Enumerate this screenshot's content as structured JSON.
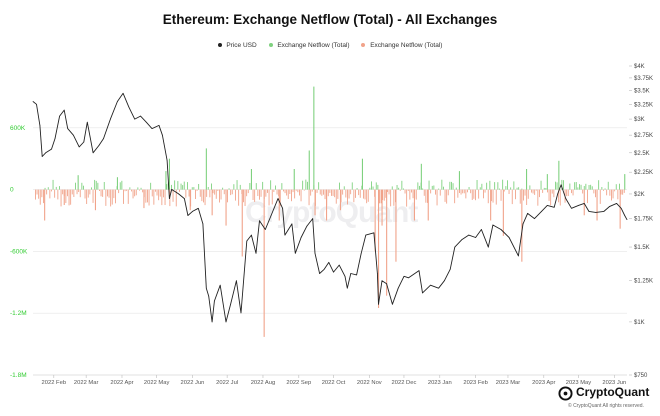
{
  "colors": {
    "price": "#222222",
    "inflow": "#7fd17f",
    "outflow": "#f1a38a",
    "left_axis": "#33cc33",
    "right_axis": "#444444",
    "grid": "#e6e6e6"
  },
  "chart_data": {
    "type": "line",
    "title": "Ethereum: Exchange Netflow (Total) - All Exchanges",
    "legend": {
      "placement": "top-center"
    },
    "series": [
      {
        "name": "Price USD",
        "kind": "line",
        "axis": "right"
      },
      {
        "name": "Exchange Netflow (Total)",
        "kind": "bar",
        "axis": "left",
        "sign": "positive"
      },
      {
        "name": "Exchange Netflow (Total)",
        "kind": "bar",
        "axis": "left",
        "sign": "negative"
      }
    ],
    "x_axis": {
      "range": [
        "2022-01-14",
        "2023-06-12"
      ],
      "ticks": [
        {
          "date": "2022-02-01",
          "label": "2022 Feb"
        },
        {
          "date": "2022-03-01",
          "label": "2022 Mar"
        },
        {
          "date": "2022-04-01",
          "label": "2022 Apr"
        },
        {
          "date": "2022-05-01",
          "label": "2022 May"
        },
        {
          "date": "2022-06-01",
          "label": "2022 Jun"
        },
        {
          "date": "2022-07-01",
          "label": "2022 Jul"
        },
        {
          "date": "2022-08-01",
          "label": "2022 Aug"
        },
        {
          "date": "2022-09-01",
          "label": "2022 Sep"
        },
        {
          "date": "2022-10-01",
          "label": "2022 Oct"
        },
        {
          "date": "2022-11-01",
          "label": "2022 Nov"
        },
        {
          "date": "2022-12-01",
          "label": "2022 Dec"
        },
        {
          "date": "2023-01-01",
          "label": "2023 Jan"
        },
        {
          "date": "2023-02-01",
          "label": "2023 Feb"
        },
        {
          "date": "2023-03-01",
          "label": "2023 Mar"
        },
        {
          "date": "2023-04-01",
          "label": "2023 Apr"
        },
        {
          "date": "2023-05-01",
          "label": "2023 May"
        },
        {
          "date": "2023-06-01",
          "label": "2023 Jun"
        }
      ]
    },
    "left_axis": {
      "range": [
        -1800000,
        1200000
      ],
      "ticks": [
        {
          "value": 600000,
          "label": "600K"
        },
        {
          "value": 0,
          "label": "0"
        },
        {
          "value": -600000,
          "label": "-600K"
        },
        {
          "value": -1200000,
          "label": "-1.2M"
        },
        {
          "value": -1800000,
          "label": "-1.8M"
        }
      ]
    },
    "right_axis": {
      "scale": "log",
      "range": [
        750,
        4000
      ],
      "ticks": [
        {
          "value": 4000,
          "label": "$4K"
        },
        {
          "value": 3750,
          "label": "$3.75K"
        },
        {
          "value": 3500,
          "label": "$3.5K"
        },
        {
          "value": 3250,
          "label": "$3.25K"
        },
        {
          "value": 3000,
          "label": "$3K"
        },
        {
          "value": 2750,
          "label": "$2.75K"
        },
        {
          "value": 2500,
          "label": "$2.5K"
        },
        {
          "value": 2250,
          "label": "$2.25K"
        },
        {
          "value": 2000,
          "label": "$2K"
        },
        {
          "value": 1750,
          "label": "$1.75K"
        },
        {
          "value": 1500,
          "label": "$1.5K"
        },
        {
          "value": 1250,
          "label": "$1.25K"
        },
        {
          "value": 1000,
          "label": "$1K"
        },
        {
          "value": 750,
          "label": "$750"
        }
      ]
    },
    "price_usd": [
      [
        "2022-01-14",
        3300
      ],
      [
        "2022-01-17",
        3250
      ],
      [
        "2022-01-20",
        2900
      ],
      [
        "2022-01-22",
        2450
      ],
      [
        "2022-01-25",
        2500
      ],
      [
        "2022-01-30",
        2550
      ],
      [
        "2022-02-02",
        2700
      ],
      [
        "2022-02-06",
        3050
      ],
      [
        "2022-02-10",
        3150
      ],
      [
        "2022-02-13",
        2850
      ],
      [
        "2022-02-18",
        2750
      ],
      [
        "2022-02-23",
        2580
      ],
      [
        "2022-02-27",
        2650
      ],
      [
        "2022-03-02",
        2950
      ],
      [
        "2022-03-07",
        2500
      ],
      [
        "2022-03-12",
        2600
      ],
      [
        "2022-03-16",
        2700
      ],
      [
        "2022-03-22",
        3000
      ],
      [
        "2022-03-28",
        3300
      ],
      [
        "2022-04-02",
        3450
      ],
      [
        "2022-04-07",
        3200
      ],
      [
        "2022-04-12",
        3000
      ],
      [
        "2022-04-17",
        3050
      ],
      [
        "2022-04-22",
        2950
      ],
      [
        "2022-04-27",
        2850
      ],
      [
        "2022-05-03",
        2900
      ],
      [
        "2022-05-06",
        2750
      ],
      [
        "2022-05-10",
        2400
      ],
      [
        "2022-05-12",
        1950
      ],
      [
        "2022-05-14",
        2050
      ],
      [
        "2022-05-20",
        2000
      ],
      [
        "2022-05-25",
        1950
      ],
      [
        "2022-05-28",
        1780
      ],
      [
        "2022-06-01",
        1820
      ],
      [
        "2022-06-06",
        1850
      ],
      [
        "2022-06-10",
        1700
      ],
      [
        "2022-06-13",
        1200
      ],
      [
        "2022-06-15",
        1150
      ],
      [
        "2022-06-18",
        1000
      ],
      [
        "2022-06-20",
        1120
      ],
      [
        "2022-06-25",
        1220
      ],
      [
        "2022-06-30",
        1000
      ],
      [
        "2022-07-04",
        1100
      ],
      [
        "2022-07-09",
        1250
      ],
      [
        "2022-07-13",
        1050
      ],
      [
        "2022-07-18",
        1550
      ],
      [
        "2022-07-22",
        1600
      ],
      [
        "2022-07-26",
        1450
      ],
      [
        "2022-07-29",
        1730
      ],
      [
        "2022-08-03",
        1650
      ],
      [
        "2022-08-08",
        1780
      ],
      [
        "2022-08-14",
        1950
      ],
      [
        "2022-08-18",
        1850
      ],
      [
        "2022-08-20",
        1600
      ],
      [
        "2022-08-26",
        1700
      ],
      [
        "2022-08-29",
        1450
      ],
      [
        "2022-09-03",
        1580
      ],
      [
        "2022-09-08",
        1680
      ],
      [
        "2022-09-13",
        1750
      ],
      [
        "2022-09-15",
        1450
      ],
      [
        "2022-09-19",
        1300
      ],
      [
        "2022-09-23",
        1330
      ],
      [
        "2022-09-27",
        1380
      ],
      [
        "2022-10-01",
        1310
      ],
      [
        "2022-10-06",
        1360
      ],
      [
        "2022-10-11",
        1280
      ],
      [
        "2022-10-13",
        1200
      ],
      [
        "2022-10-16",
        1300
      ],
      [
        "2022-10-21",
        1290
      ],
      [
        "2022-10-25",
        1450
      ],
      [
        "2022-10-29",
        1600
      ],
      [
        "2022-11-05",
        1620
      ],
      [
        "2022-11-08",
        1300
      ],
      [
        "2022-11-09",
        1100
      ],
      [
        "2022-11-12",
        1250
      ],
      [
        "2022-11-16",
        1230
      ],
      [
        "2022-11-21",
        1100
      ],
      [
        "2022-11-26",
        1200
      ],
      [
        "2022-12-01",
        1280
      ],
      [
        "2022-12-05",
        1270
      ],
      [
        "2022-12-14",
        1320
      ],
      [
        "2022-12-17",
        1170
      ],
      [
        "2022-12-24",
        1220
      ],
      [
        "2022-12-31",
        1200
      ],
      [
        "2023-01-05",
        1250
      ],
      [
        "2023-01-10",
        1330
      ],
      [
        "2023-01-14",
        1500
      ],
      [
        "2023-01-20",
        1560
      ],
      [
        "2023-01-26",
        1600
      ],
      [
        "2023-02-01",
        1580
      ],
      [
        "2023-02-06",
        1650
      ],
      [
        "2023-02-12",
        1500
      ],
      [
        "2023-02-16",
        1690
      ],
      [
        "2023-02-23",
        1650
      ],
      [
        "2023-03-02",
        1580
      ],
      [
        "2023-03-10",
        1430
      ],
      [
        "2023-03-14",
        1700
      ],
      [
        "2023-03-18",
        1800
      ],
      [
        "2023-03-24",
        1750
      ],
      [
        "2023-03-30",
        1820
      ],
      [
        "2023-04-04",
        1880
      ],
      [
        "2023-04-10",
        1860
      ],
      [
        "2023-04-13",
        2000
      ],
      [
        "2023-04-16",
        2100
      ],
      [
        "2023-04-20",
        1950
      ],
      [
        "2023-04-25",
        1850
      ],
      [
        "2023-05-01",
        1880
      ],
      [
        "2023-05-06",
        1900
      ],
      [
        "2023-05-10",
        1820
      ],
      [
        "2023-05-16",
        1810
      ],
      [
        "2023-05-23",
        1820
      ],
      [
        "2023-05-28",
        1870
      ],
      [
        "2023-06-03",
        1900
      ],
      [
        "2023-06-07",
        1850
      ],
      [
        "2023-06-10",
        1780
      ],
      [
        "2023-06-12",
        1740
      ]
    ],
    "netflow_spikes": [
      [
        "2022-01-24",
        -300000
      ],
      [
        "2022-02-10",
        -150000
      ],
      [
        "2022-02-22",
        140000
      ],
      [
        "2022-03-09",
        -200000
      ],
      [
        "2022-03-28",
        120000
      ],
      [
        "2022-04-20",
        -180000
      ],
      [
        "2022-05-09",
        180000
      ],
      [
        "2022-05-12",
        300000
      ],
      [
        "2022-05-30",
        -200000
      ],
      [
        "2022-06-13",
        400000
      ],
      [
        "2022-06-18",
        -250000
      ],
      [
        "2022-06-30",
        -350000
      ],
      [
        "2022-07-14",
        -650000
      ],
      [
        "2022-07-22",
        200000
      ],
      [
        "2022-08-02",
        -1430000
      ],
      [
        "2022-08-15",
        -300000
      ],
      [
        "2022-08-28",
        200000
      ],
      [
        "2022-09-10",
        380000
      ],
      [
        "2022-09-14",
        1000000
      ],
      [
        "2022-09-15",
        -250000
      ],
      [
        "2022-09-25",
        -300000
      ],
      [
        "2022-10-07",
        -200000
      ],
      [
        "2022-10-26",
        300000
      ],
      [
        "2022-11-06",
        -600000
      ],
      [
        "2022-11-09",
        -1150000
      ],
      [
        "2022-11-12",
        -350000
      ],
      [
        "2022-11-16",
        -1030000
      ],
      [
        "2022-11-24",
        -700000
      ],
      [
        "2022-12-10",
        -300000
      ],
      [
        "2022-12-16",
        250000
      ],
      [
        "2022-12-22",
        -300000
      ],
      [
        "2023-01-18",
        180000
      ],
      [
        "2023-02-14",
        -300000
      ],
      [
        "2023-02-25",
        -450000
      ],
      [
        "2023-03-13",
        -700000
      ],
      [
        "2023-03-17",
        200000
      ],
      [
        "2023-04-04",
        150000
      ],
      [
        "2023-04-14",
        280000
      ],
      [
        "2023-05-06",
        -250000
      ],
      [
        "2023-05-17",
        -300000
      ],
      [
        "2023-06-06",
        -380000
      ],
      [
        "2023-06-10",
        150000
      ]
    ]
  },
  "brand": {
    "name": "CryptoQuant",
    "copyright": "© CryptoQuant All rights reserved.",
    "watermark": "CryptoQuant"
  }
}
